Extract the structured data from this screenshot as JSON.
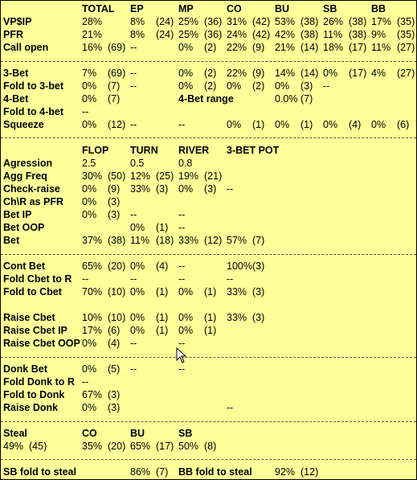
{
  "header": {
    "total": "TOTAL",
    "ep": "EP",
    "mp": "MP",
    "co": "CO",
    "bu": "BU",
    "sb": "SB",
    "bb": "BB"
  },
  "preflop": [
    {
      "label": "VP$IP",
      "v": [
        "28%",
        "",
        "8%",
        "(24)",
        "25%",
        "(36)",
        "31%",
        "(42)",
        "53%",
        "(38)",
        "26%",
        "(38)",
        "17%",
        "(35)"
      ]
    },
    {
      "label": "PFR",
      "v": [
        "21%",
        "",
        "8%",
        "(24)",
        "25%",
        "(36)",
        "24%",
        "(42)",
        "42%",
        "(38)",
        "11%",
        "(38)",
        "9%",
        "(35)"
      ]
    },
    {
      "label": "Call open",
      "v": [
        "16%",
        "(69)",
        "--",
        "",
        "0%",
        "(2)",
        "22%",
        "(9)",
        "21%",
        "(14)",
        "18%",
        "(17)",
        "11%",
        "(27)"
      ]
    }
  ],
  "threebet": [
    {
      "label": "3-Bet",
      "v": [
        "7%",
        "(69)",
        "--",
        "",
        "0%",
        "(2)",
        "22%",
        "(9)",
        "14%",
        "(14)",
        "0%",
        "(17)",
        "4%",
        "(27)"
      ]
    },
    {
      "label": "Fold to 3-bet",
      "v": [
        "0%",
        "(7)",
        "--",
        "",
        "0%",
        "(2)",
        "0%",
        "(2)",
        "0%",
        "(3)",
        "--",
        "",
        "",
        ""
      ]
    },
    {
      "label": "4-Bet",
      "v": [
        "0%",
        "(7)",
        "",
        "",
        "",
        "",
        "",
        "",
        "",
        "",
        "",
        "",
        "",
        ""
      ]
    },
    {
      "label": "Fold to 4-bet",
      "v": [
        "--",
        "",
        "",
        "",
        "",
        "",
        "",
        "",
        "",
        "",
        "",
        "",
        "",
        ""
      ]
    },
    {
      "label": "Squeeze",
      "v": [
        "0%",
        "(12)",
        "--",
        "",
        "--",
        "",
        "0%",
        "(1)",
        "0%",
        "(1)",
        "0%",
        "(4)",
        "0%",
        "(6)"
      ]
    }
  ],
  "fourbet_range": {
    "label": "4-Bet range",
    "value": "0.0%",
    "count": "(7)"
  },
  "postflop_header": {
    "flop": "FLOP",
    "turn": "TURN",
    "river": "RIVER",
    "threebetpot": "3-BET POT"
  },
  "postflop": [
    {
      "label": "Agression",
      "v": [
        "2.5",
        "",
        "0.5",
        "",
        "0.8",
        "",
        "",
        ""
      ]
    },
    {
      "label": "Agg Freq",
      "v": [
        "30%",
        "(50)",
        "12%",
        "(25)",
        "19%",
        "(21)",
        "",
        ""
      ]
    },
    {
      "label": "Check-raise",
      "v": [
        "0%",
        "(9)",
        "33%",
        "(3)",
        "0%",
        "(3)",
        "--",
        ""
      ]
    },
    {
      "label": "Ch\\R as PFR",
      "v": [
        "0%",
        "(3)",
        "",
        "",
        "",
        "",
        "",
        ""
      ]
    },
    {
      "label": "Bet IP",
      "v": [
        "0%",
        "(3)",
        "--",
        "",
        "--",
        "",
        "",
        ""
      ]
    },
    {
      "label": "Bet OOP",
      "v": [
        "",
        "",
        "0%",
        "(1)",
        "--",
        "",
        "",
        ""
      ]
    },
    {
      "label": "Bet",
      "v": [
        "37%",
        "(38)",
        "11%",
        "(18)",
        "33%",
        "(12)",
        "57%",
        "(7)"
      ]
    }
  ],
  "cbet": [
    {
      "label": "Cont Bet",
      "v": [
        "65%",
        "(20)",
        "0%",
        "(4)",
        "--",
        "",
        "100%",
        "(3)"
      ]
    },
    {
      "label": "Fold Cbet to R",
      "v": [
        "--",
        "",
        "--",
        "",
        "--",
        "",
        "--",
        ""
      ]
    },
    {
      "label": "Fold to Cbet",
      "v": [
        "70%",
        "(10)",
        "0%",
        "(1)",
        "0%",
        "(1)",
        "33%",
        "(3)"
      ]
    }
  ],
  "raisecbet": [
    {
      "label": "Raise Cbet",
      "v": [
        "10%",
        "(10)",
        "0%",
        "(1)",
        "0%",
        "(1)",
        "33%",
        "(3)"
      ]
    },
    {
      "label": "Raise Cbet IP",
      "v": [
        "17%",
        "(6)",
        "0%",
        "(1)",
        "0%",
        "(1)",
        "",
        ""
      ]
    },
    {
      "label": "Raise Cbet OOP",
      "v": [
        "0%",
        "(4)",
        "--",
        "",
        "--",
        "",
        "",
        ""
      ]
    }
  ],
  "donk": [
    {
      "label": "Donk Bet",
      "v": [
        "0%",
        "(5)",
        "--",
        "",
        "--",
        "",
        "",
        ""
      ]
    },
    {
      "label": "Fold Donk to R",
      "v": [
        "--",
        "",
        "",
        "",
        "",
        "",
        "",
        ""
      ]
    },
    {
      "label": "Fold to Donk",
      "v": [
        "67%",
        "(3)",
        "",
        "",
        "",
        "",
        "",
        ""
      ]
    },
    {
      "label": "Raise Donk",
      "v": [
        "0%",
        "(3)",
        "",
        "",
        "",
        "",
        "--",
        ""
      ]
    }
  ],
  "steal": {
    "label": "Steal",
    "co": "CO",
    "bu": "BU",
    "sb": "SB",
    "total": "49%",
    "total_n": "(45)",
    "co_v": "35%",
    "co_n": "(20)",
    "bu_v": "65%",
    "bu_n": "(17)",
    "sb_v": "50%",
    "sb_n": "(8)"
  },
  "fold_steal": {
    "sb_label": "SB fold to steal",
    "sb_v": "86%",
    "sb_n": "(7)",
    "bb_label": "BB fold to steal",
    "bb_v": "92%",
    "bb_n": "(12)"
  }
}
